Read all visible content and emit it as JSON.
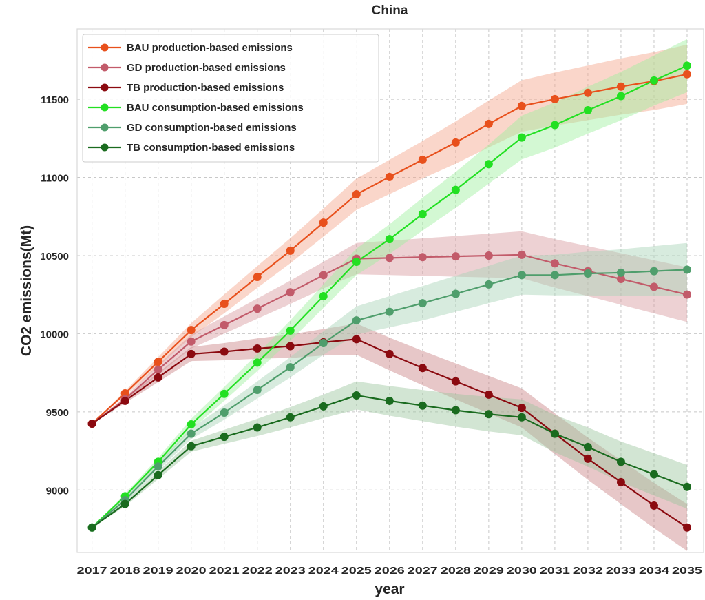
{
  "chart_data": {
    "type": "line",
    "title": "China",
    "xlabel": "year",
    "ylabel": "CO2 emissions(Mt)",
    "x": [
      2017,
      2018,
      2019,
      2020,
      2021,
      2022,
      2023,
      2024,
      2025,
      2026,
      2027,
      2028,
      2029,
      2030,
      2031,
      2032,
      2033,
      2034,
      2035
    ],
    "xtick_labels": [
      "2017",
      "2018",
      "2019",
      "2020",
      "2021",
      "2022",
      "2023",
      "2024",
      "2025",
      "2026",
      "2027",
      "2028",
      "2029",
      "2030",
      "2031",
      "2032",
      "2033",
      "2034",
      "2035"
    ],
    "yticks": [
      9000,
      9500,
      10000,
      10500,
      11000,
      11500
    ],
    "ytick_labels": [
      "9000",
      "9500",
      "10000",
      "10500",
      "11000",
      "11500"
    ],
    "ylim": [
      8600,
      11950
    ],
    "xlim": [
      2016.55,
      2035.5
    ],
    "grid": true,
    "legend_position": "top-left",
    "series": [
      {
        "name": "BAU production-based emissions",
        "color": "#e8501c",
        "band_color": "#f4a58a",
        "values": [
          9424,
          9618,
          9820,
          10023,
          10191,
          10363,
          10531,
          10711,
          10892,
          11003,
          11113,
          11223,
          11342,
          11457,
          11501,
          11541,
          11581,
          11616,
          11660
        ],
        "band_halfwidth": [
          0,
          15,
          30,
          45,
          60,
          70,
          80,
          90,
          100,
          110,
          120,
          135,
          150,
          165,
          170,
          175,
          180,
          185,
          190
        ]
      },
      {
        "name": "GD production-based emissions",
        "color": "#c25b6a",
        "band_color": "#d89a9e",
        "values": [
          9424,
          9580,
          9770,
          9950,
          10055,
          10160,
          10265,
          10375,
          10480,
          10485,
          10490,
          10495,
          10500,
          10505,
          10450,
          10400,
          10350,
          10300,
          10250
        ],
        "band_halfwidth": [
          0,
          15,
          30,
          45,
          55,
          65,
          75,
          85,
          100,
          110,
          120,
          130,
          140,
          150,
          155,
          160,
          165,
          170,
          175
        ]
      },
      {
        "name": "TB production-based emissions",
        "color": "#8b0a10",
        "band_color": "#c98286",
        "values": [
          9424,
          9570,
          9720,
          9870,
          9885,
          9905,
          9920,
          9945,
          9965,
          9870,
          9780,
          9695,
          9610,
          9525,
          9360,
          9200,
          9050,
          8900,
          8760
        ],
        "band_halfwidth": [
          0,
          15,
          30,
          45,
          55,
          65,
          75,
          85,
          100,
          105,
          110,
          115,
          120,
          125,
          130,
          135,
          140,
          145,
          150
        ]
      },
      {
        "name": "BAU consumption-based emissions",
        "color": "#22e022",
        "band_color": "#9df09d",
        "values": [
          8760,
          8960,
          9180,
          9420,
          9615,
          9815,
          10020,
          10240,
          10460,
          10605,
          10765,
          10920,
          11085,
          11255,
          11335,
          11430,
          11520,
          11620,
          11715
        ],
        "band_halfwidth": [
          0,
          15,
          25,
          35,
          45,
          55,
          65,
          75,
          85,
          95,
          105,
          115,
          125,
          140,
          145,
          150,
          155,
          160,
          170
        ]
      },
      {
        "name": "GD consumption-based emissions",
        "color": "#4f9e6c",
        "band_color": "#a7d3b5",
        "values": [
          8760,
          8935,
          9150,
          9360,
          9495,
          9640,
          9785,
          9940,
          10085,
          10140,
          10195,
          10255,
          10315,
          10375,
          10375,
          10385,
          10390,
          10400,
          10410
        ],
        "band_halfwidth": [
          0,
          15,
          25,
          35,
          45,
          55,
          65,
          75,
          90,
          100,
          110,
          115,
          120,
          125,
          130,
          140,
          150,
          160,
          170
        ]
      },
      {
        "name": "TB consumption-based emissions",
        "color": "#1a6b1f",
        "band_color": "#9cc59e",
        "values": [
          8760,
          8910,
          9095,
          9280,
          9340,
          9400,
          9465,
          9535,
          9605,
          9570,
          9540,
          9510,
          9485,
          9465,
          9360,
          9275,
          9180,
          9100,
          9020
        ],
        "band_halfwidth": [
          0,
          15,
          25,
          35,
          45,
          55,
          65,
          75,
          90,
          95,
          100,
          105,
          110,
          115,
          120,
          125,
          130,
          135,
          140
        ]
      }
    ]
  }
}
